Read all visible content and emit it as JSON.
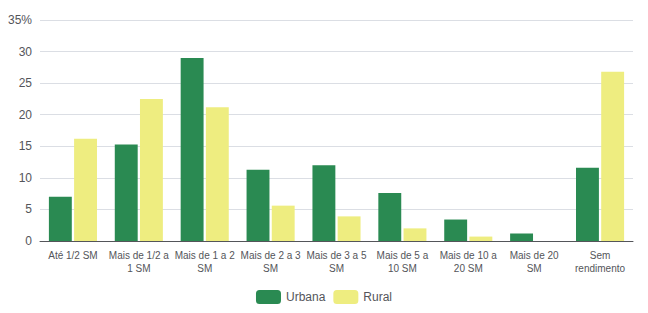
{
  "chart_data": {
    "type": "bar",
    "categories": [
      "Até 1/2 SM",
      "Mais de 1/2 a\n1 SM",
      "Mais de 1 a 2\nSM",
      "Mais de 2 a 3\nSM",
      "Mais de 3 a 5\nSM",
      "Mais de 5 a\n10 SM",
      "Mais de 10 a\n20 SM",
      "Mais de 20\nSM",
      "Sem\nrendimento"
    ],
    "series": [
      {
        "name": "Urbana",
        "color": "#2a8a52",
        "values": [
          7.0,
          15.3,
          29.0,
          11.3,
          12.0,
          7.6,
          3.4,
          1.2,
          11.6
        ]
      },
      {
        "name": "Rural",
        "color": "#eeed80",
        "values": [
          16.2,
          22.5,
          21.2,
          5.6,
          3.9,
          2.0,
          0.7,
          0.0,
          26.8
        ]
      }
    ],
    "ylim": [
      0,
      35
    ],
    "yticks": [
      0,
      5,
      10,
      15,
      20,
      25,
      30,
      {
        "value": 35,
        "label": "35%"
      }
    ],
    "grid": true,
    "legend": "bottom"
  }
}
